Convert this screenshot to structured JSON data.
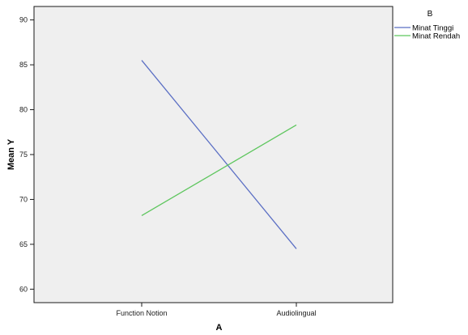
{
  "chart_data": {
    "type": "line",
    "title": "",
    "xlabel": "A",
    "ylabel": "Mean Y",
    "categories": [
      "Function Notion",
      "Audiolingual"
    ],
    "ylim": [
      58.5,
      91.5
    ],
    "yticks": [
      60,
      65,
      70,
      75,
      80,
      85,
      90
    ],
    "grid": false,
    "legend": {
      "title": "B",
      "placement": "outside-top-right"
    },
    "plot_background": "#efefef",
    "series": [
      {
        "name": "Minat Tinggi",
        "color": "#5b6fc4",
        "values": [
          85.5,
          64.5
        ]
      },
      {
        "name": "Minat Rendah",
        "color": "#5ec65e",
        "values": [
          68.2,
          78.3
        ]
      }
    ]
  }
}
